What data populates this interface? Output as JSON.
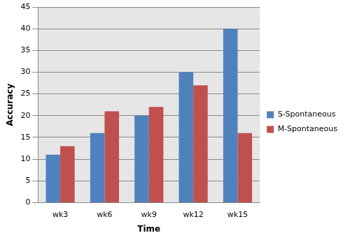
{
  "chart_data": {
    "type": "bar",
    "categories": [
      "wk3",
      "wk6",
      "wk9",
      "wk12",
      "wk15"
    ],
    "series": [
      {
        "name": "S-Spontaneous",
        "color": "#4f81bd",
        "values": [
          11,
          16,
          20,
          30,
          40
        ]
      },
      {
        "name": "M-Spontaneous",
        "color": "#c0504d",
        "values": [
          13,
          21,
          22,
          27,
          16
        ]
      }
    ],
    "x_label": "Time",
    "y_label": "Accuracy",
    "ylim": [
      0,
      45
    ],
    "yticks": [
      0,
      5,
      10,
      15,
      20,
      25,
      30,
      35,
      40,
      45
    ],
    "grid": true,
    "legend": "right"
  }
}
